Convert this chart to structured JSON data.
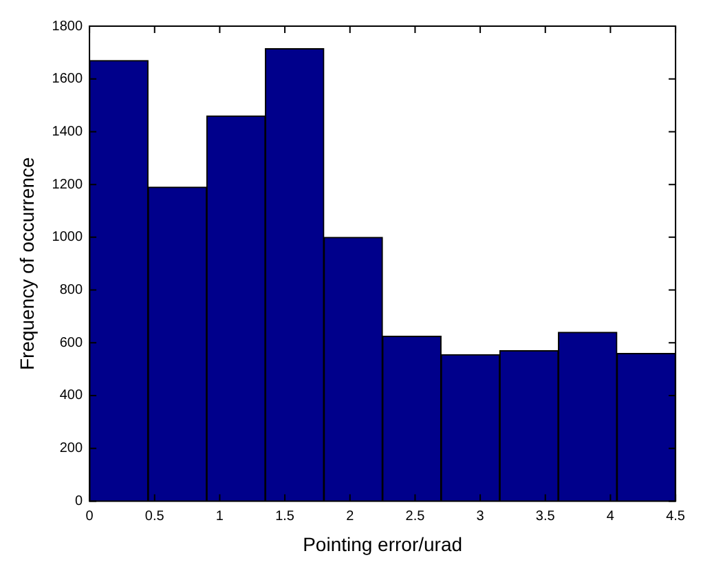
{
  "chart_data": {
    "type": "histogram",
    "xlabel": "Pointing error/urad",
    "ylabel": "Frequency of occurrence",
    "bins": [
      0,
      0.45,
      0.9,
      1.35,
      1.8,
      2.25,
      2.7,
      3.15,
      3.6,
      4.05,
      4.5
    ],
    "values": [
      1670,
      1190,
      1460,
      1715,
      1000,
      625,
      555,
      570,
      640,
      560
    ],
    "color": "#00008b",
    "xlim": [
      0,
      4.5
    ],
    "xticks": [
      0,
      0.5,
      1,
      1.5,
      2,
      2.5,
      3,
      3.5,
      4,
      4.5
    ],
    "ylim": [
      0,
      1800
    ],
    "yticks": [
      0,
      200,
      400,
      600,
      800,
      1000,
      1200,
      1400,
      1600,
      1800
    ],
    "grid": false,
    "legend": false
  }
}
